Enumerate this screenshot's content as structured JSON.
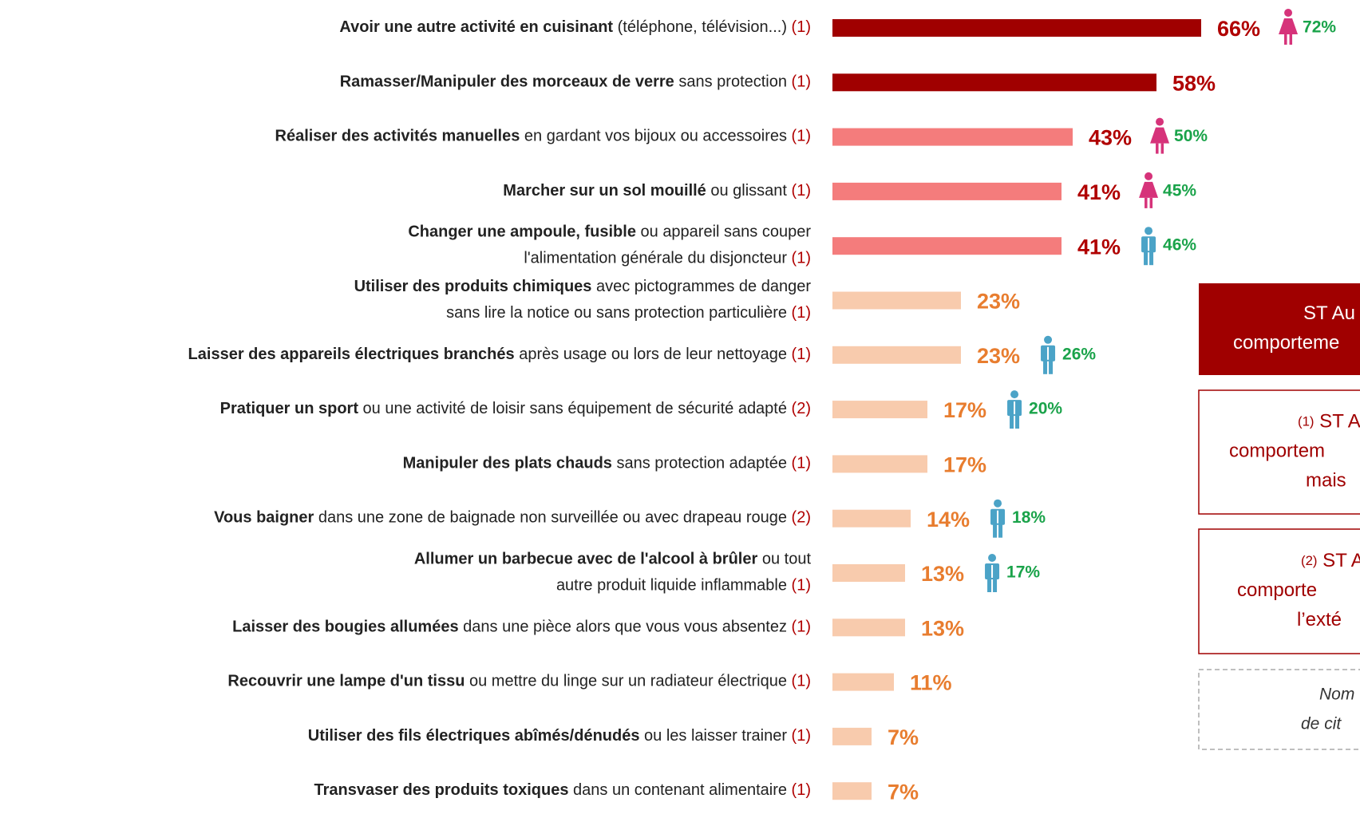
{
  "chart_data": {
    "type": "hbar",
    "categories": [
      [
        {
          "bold": "Avoir une autre activité en cuisinant",
          "text": " (téléphone, télévision...) ",
          "note": "(1)"
        }
      ],
      [
        {
          "bold": "Ramasser/Manipuler des morceaux de verre",
          "text": " sans protection ",
          "note": "(1)"
        }
      ],
      [
        {
          "bold": "Réaliser des activités manuelles",
          "text": " en gardant vos bijoux ou accessoires ",
          "note": "(1)"
        }
      ],
      [
        {
          "bold": "Marcher sur un sol mouillé",
          "text": " ou glissant ",
          "note": "(1)"
        }
      ],
      [
        {
          "bold": "Changer une ampoule, fusible",
          "text": " ou appareil sans couper"
        },
        {
          "text": "l'alimentation générale du disjoncteur ",
          "note": "(1)"
        }
      ],
      [
        {
          "bold": "Utiliser des produits chimiques",
          "text": " avec pictogrammes de danger"
        },
        {
          "text": "sans lire la notice ou sans protection particulière ",
          "note": "(1)"
        }
      ],
      [
        {
          "bold": "Laisser des appareils électriques branchés",
          "text": " après usage ou lors de leur nettoyage ",
          "note": "(1)"
        }
      ],
      [
        {
          "bold": "Pratiquer un sport",
          "text": " ou une activité de loisir sans équipement de sécurité adapté ",
          "note": "(2)"
        }
      ],
      [
        {
          "bold": "Manipuler des plats chauds",
          "text": " sans protection adaptée ",
          "note": "(1)"
        }
      ],
      [
        {
          "bold": "Vous baigner",
          "text": " dans une zone de baignade non surveillée ou avec drapeau rouge ",
          "note": "(2)"
        }
      ],
      [
        {
          "bold": "Allumer un barbecue avec de l'alcool à brûler",
          "text": " ou tout"
        },
        {
          "text": "autre produit liquide inflammable ",
          "note": "(1)"
        }
      ],
      [
        {
          "bold": "Laisser des bougies allumées",
          "text": " dans une pièce alors que vous vous absentez ",
          "note": "(1)"
        }
      ],
      [
        {
          "bold": "Recouvrir une lampe d'un tissu",
          "text": " ou mettre du linge sur un radiateur électrique ",
          "note": "(1)"
        }
      ],
      [
        {
          "bold": "Utiliser des fils électriques abîmés/dénudés",
          "text": " ou les laisser trainer ",
          "note": "(1)"
        }
      ],
      [
        {
          "bold": "Transvaser des produits toxiques",
          "text": " dans un contenant alimentaire ",
          "note": "(1)"
        }
      ]
    ],
    "values": [
      66,
      58,
      43,
      41,
      41,
      23,
      23,
      17,
      17,
      14,
      13,
      13,
      11,
      7,
      7
    ],
    "value_labels": [
      "66%",
      "58%",
      "43%",
      "41%",
      "41%",
      "23%",
      "23%",
      "17%",
      "17%",
      "14%",
      "13%",
      "13%",
      "11%",
      "7%",
      "7%"
    ],
    "colors": [
      "#a00000",
      "#a00000",
      "#f47c7c",
      "#f47c7c",
      "#f47c7c",
      "#f8cbad",
      "#f8cbad",
      "#f8cbad",
      "#f8cbad",
      "#f8cbad",
      "#f8cbad",
      "#f8cbad",
      "#f8cbad",
      "#f8cbad",
      "#f8cbad"
    ],
    "label_colors": [
      "#b00000",
      "#b00000",
      "#b00000",
      "#b00000",
      "#b00000",
      "#e87d2f",
      "#e87d2f",
      "#e87d2f",
      "#e87d2f",
      "#e87d2f",
      "#e87d2f",
      "#e87d2f",
      "#e87d2f",
      "#e87d2f",
      "#e87d2f"
    ],
    "highlights": [
      72,
      null,
      50,
      45,
      46,
      null,
      26,
      20,
      null,
      18,
      17,
      null,
      null,
      null,
      null
    ],
    "highlight_labels": [
      "72%",
      null,
      "50%",
      "45%",
      "46%",
      null,
      "26%",
      "20%",
      null,
      "18%",
      "17%",
      null,
      null,
      null,
      null
    ],
    "highlight_icons": [
      "woman",
      null,
      "woman",
      "woman",
      "man",
      null,
      "man",
      "man",
      null,
      "man",
      "man",
      null,
      null,
      null,
      null
    ],
    "boxes": [
      {
        "lines": [
          {
            "text": "ST Au"
          },
          {
            "text": "comporteme"
          }
        ]
      },
      {
        "lines": [
          {
            "note": "(1)",
            "text": " ST A"
          },
          {
            "text": "comportem"
          },
          {
            "text": "mais"
          }
        ]
      },
      {
        "lines": [
          {
            "note": "(2)",
            "text": " ST A"
          },
          {
            "text": "comporte"
          },
          {
            "text": "l’exté"
          }
        ]
      },
      {
        "lines": [
          {
            "text": "Nom"
          },
          {
            "text": "de cit"
          }
        ]
      }
    ]
  }
}
